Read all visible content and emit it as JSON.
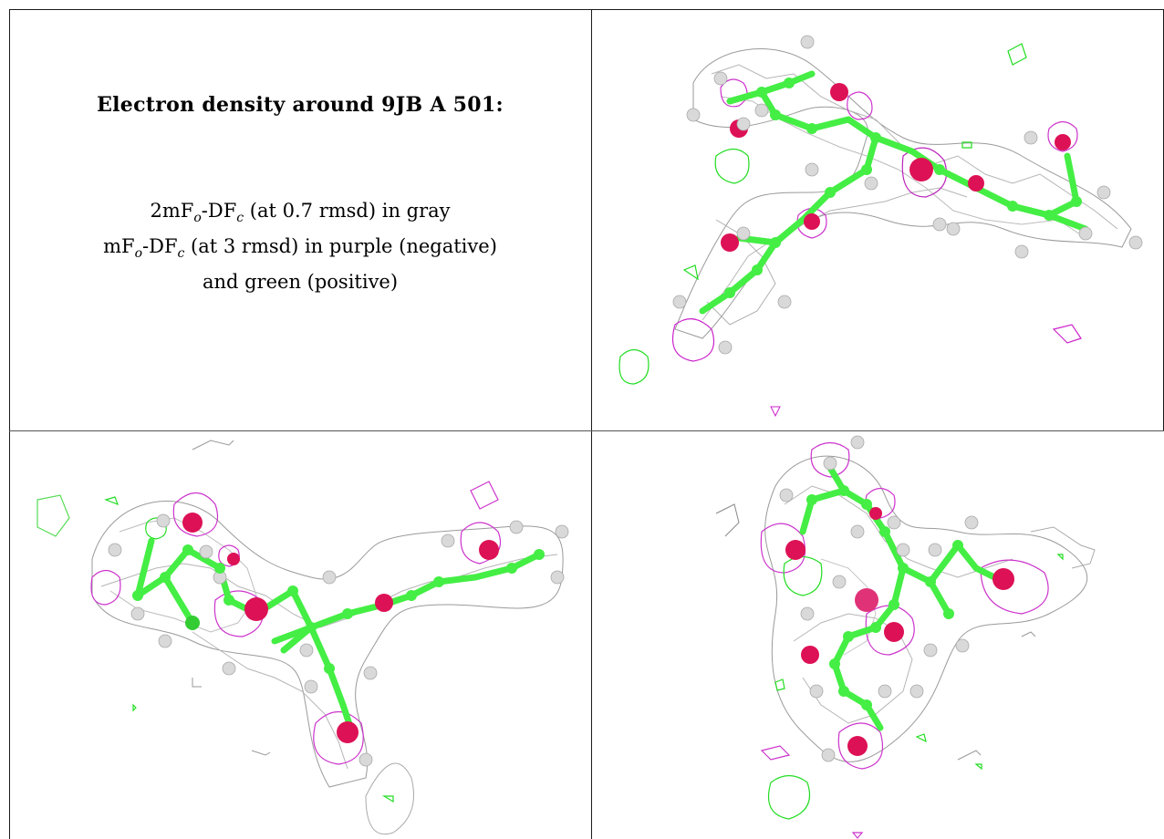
{
  "caption": {
    "title": "Electron density around 9JB A 501:",
    "line1": {
      "pre": "2mF",
      "sub1": "o",
      "mid": "-DF",
      "sub2": "c",
      "post": " (at 0.7 rmsd) in gray"
    },
    "line2": {
      "pre": "mF",
      "sub1": "o",
      "mid": "-DF",
      "sub2": "c",
      "post": " (at 3 rmsd) in purple (negative)"
    },
    "line3": "and green (positive)"
  },
  "colors": {
    "mesh_gray": "#9a9a9a",
    "mesh_purple": "#cc22cc",
    "mesh_green": "#22ee22",
    "carbon": "#44ee44",
    "oxygen": "#dd1155",
    "hydrogen": "#d8d8d8"
  },
  "panels": [
    {
      "id": "view-1",
      "label": ""
    },
    {
      "id": "view-2",
      "label": ""
    },
    {
      "id": "view-3",
      "label": ""
    }
  ]
}
